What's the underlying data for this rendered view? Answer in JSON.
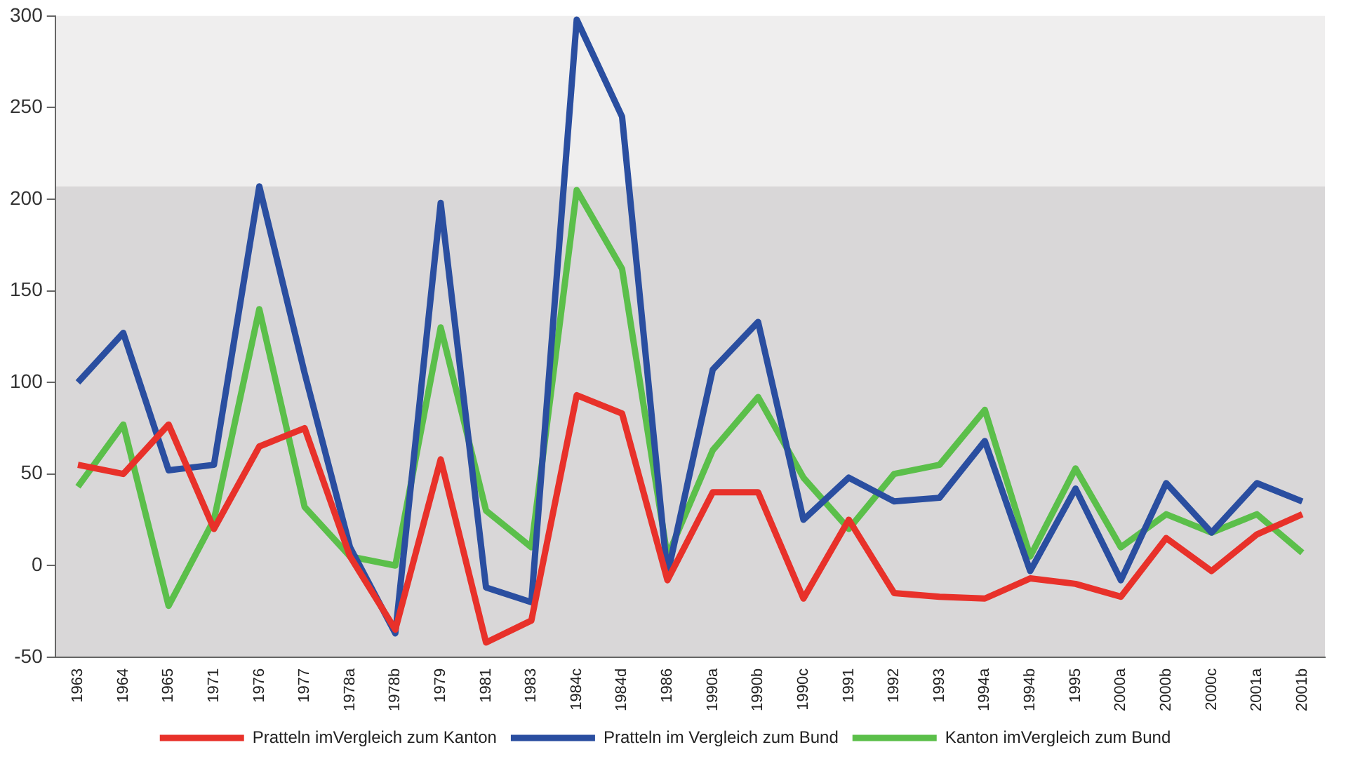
{
  "chart_data": {
    "type": "line",
    "categories": [
      "1963",
      "1964",
      "1965",
      "1971",
      "1976",
      "1977",
      "1978a",
      "1978b",
      "1979",
      "1981",
      "1983",
      "1984c",
      "1984d",
      "1986",
      "1990a",
      "1990b",
      "1990c",
      "1991",
      "1992",
      "1993",
      "1994a",
      "1994b",
      "1995",
      "2000a",
      "2000b",
      "2000c",
      "2001a",
      "2001b"
    ],
    "series": [
      {
        "name": "Pratteln imVergleich zum Kanton",
        "color": "#e8312a",
        "values": [
          55,
          50,
          77,
          20,
          65,
          75,
          5,
          -35,
          58,
          -42,
          -30,
          93,
          83,
          -8,
          40,
          40,
          -18,
          25,
          -15,
          -17,
          -18,
          -7,
          -10,
          -17,
          15,
          -3,
          17,
          28
        ]
      },
      {
        "name": "Pratteln im Vergleich zum Bund",
        "color": "#2a4ea0",
        "values": [
          100,
          127,
          52,
          55,
          207,
          105,
          10,
          -37,
          198,
          -12,
          -20,
          298,
          245,
          -5,
          107,
          133,
          25,
          48,
          35,
          37,
          68,
          -3,
          42,
          -8,
          45,
          18,
          45,
          35
        ]
      },
      {
        "name": "Kanton imVergleich zum Bund",
        "color": "#5bbf4a",
        "values": [
          43,
          77,
          -22,
          25,
          140,
          32,
          5,
          0,
          130,
          30,
          10,
          205,
          162,
          5,
          63,
          92,
          48,
          20,
          50,
          55,
          85,
          5,
          53,
          10,
          28,
          18,
          28,
          7
        ]
      }
    ],
    "ylim": [
      -50,
      300
    ],
    "yticks": [
      -50,
      0,
      50,
      100,
      150,
      200,
      250,
      300
    ],
    "bands": [
      {
        "axis": "y",
        "from": -50,
        "to": 207,
        "color": "#d9d7d8"
      }
    ],
    "grid": false,
    "legend": "bottom",
    "marker": "none",
    "line_style": "solid"
  }
}
